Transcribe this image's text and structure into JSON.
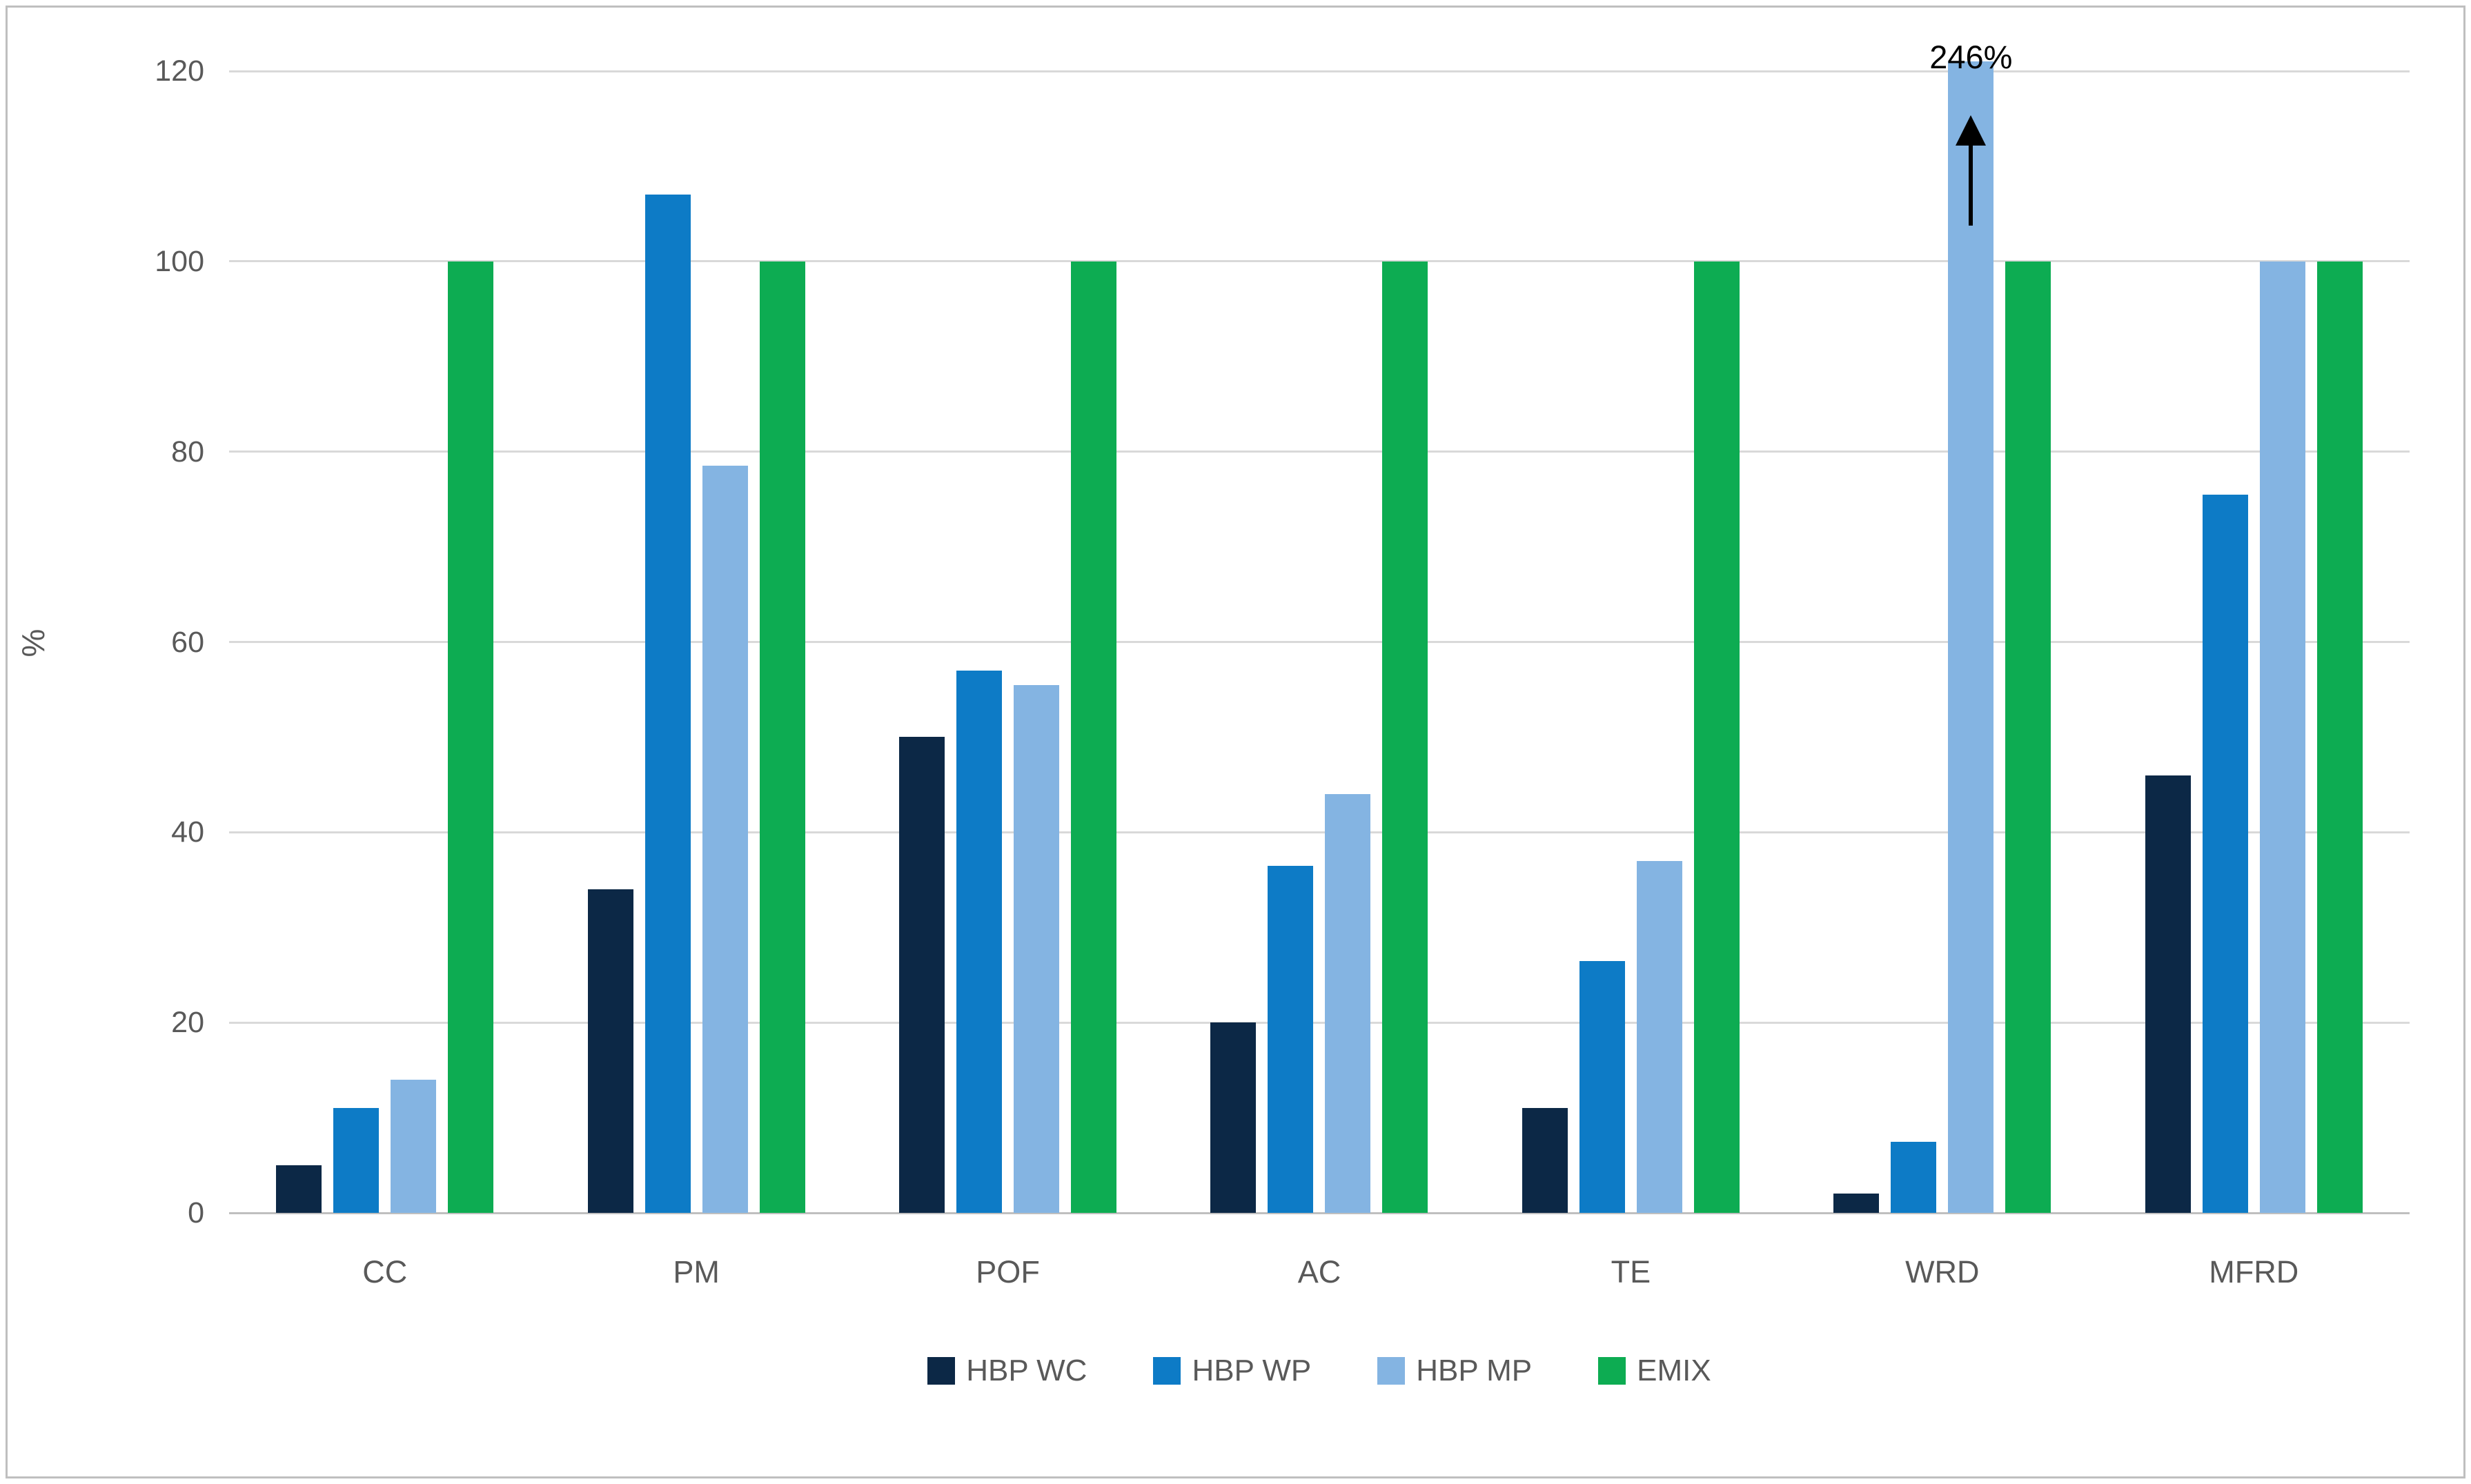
{
  "chart_data": {
    "type": "bar",
    "title": "",
    "xlabel": "",
    "ylabel": "%",
    "ylim": [
      0,
      120
    ],
    "y_ticks": [
      0,
      20,
      40,
      60,
      80,
      100,
      120
    ],
    "grid": true,
    "legend_position": "bottom",
    "categories": [
      "CC",
      "PM",
      "POF",
      "AC",
      "TE",
      "WRD",
      "MFRD"
    ],
    "series": [
      {
        "name": "HBP WC",
        "color": "#0c2846",
        "values": [
          5,
          34,
          50,
          20,
          11,
          2,
          46
        ]
      },
      {
        "name": "HBP WP",
        "color": "#0d7bc6",
        "values": [
          11,
          107,
          57,
          36.5,
          26.5,
          7.5,
          75.5
        ]
      },
      {
        "name": "HBP MP",
        "color": "#84b4e2",
        "values": [
          14,
          78.5,
          55.5,
          44,
          37,
          246,
          100
        ]
      },
      {
        "name": "EMIX",
        "color": "#0dac52",
        "values": [
          100,
          100,
          100,
          100,
          100,
          100,
          100
        ]
      }
    ],
    "annotation": {
      "text": "246%",
      "category": "WRD",
      "series": "HBP MP",
      "note": "bar exceeds axis max, clipped with up arrow"
    }
  }
}
